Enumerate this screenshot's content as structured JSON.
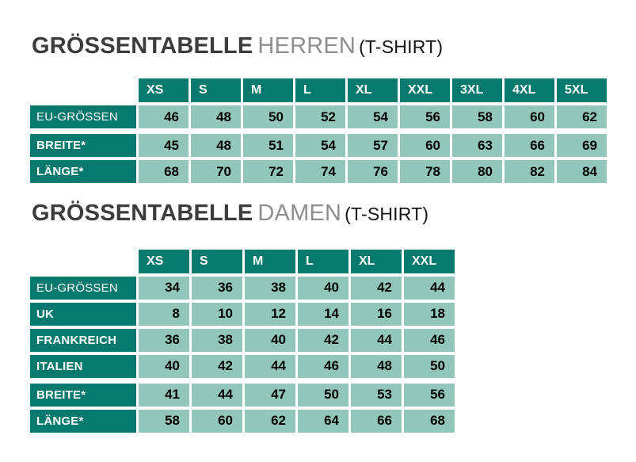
{
  "colors": {
    "teal_header": "#05796d",
    "cell_green": "#92c6bb",
    "title_main_gray": "#3c3c3c",
    "title_sub_gray": "#8e8e8e",
    "title_suffix_black": "#141414",
    "background": "#ffffff"
  },
  "tables": [
    {
      "title_main": "GRÖSSENTABELLE",
      "title_sub": "HERREN",
      "title_suffix": "(T-SHIRT)",
      "columns": [
        "XS",
        "S",
        "M",
        "L",
        "XL",
        "XXL",
        "3XL",
        "4XL",
        "5XL"
      ],
      "rows": [
        {
          "label": "EU-GRÖSSEN",
          "bold": false,
          "group_start": false,
          "values": [
            46,
            48,
            50,
            52,
            54,
            56,
            58,
            60,
            62
          ]
        },
        {
          "label": "BREITE*",
          "bold": true,
          "group_start": true,
          "values": [
            45,
            48,
            51,
            54,
            57,
            60,
            63,
            66,
            69
          ]
        },
        {
          "label": "LÄNGE*",
          "bold": true,
          "group_start": false,
          "values": [
            68,
            70,
            72,
            74,
            76,
            78,
            80,
            82,
            84
          ]
        }
      ]
    },
    {
      "title_main": "GRÖSSENTABELLE",
      "title_sub": "DAMEN",
      "title_suffix": "(T-SHIRT)",
      "columns": [
        "XS",
        "S",
        "M",
        "L",
        "XL",
        "XXL"
      ],
      "rows": [
        {
          "label": "EU-GRÖSSEN",
          "bold": false,
          "group_start": false,
          "values": [
            34,
            36,
            38,
            40,
            42,
            44
          ]
        },
        {
          "label": "UK",
          "bold": true,
          "group_start": false,
          "values": [
            8,
            10,
            12,
            14,
            16,
            18
          ]
        },
        {
          "label": "FRANKREICH",
          "bold": true,
          "group_start": false,
          "values": [
            36,
            38,
            40,
            42,
            44,
            46
          ]
        },
        {
          "label": "ITALIEN",
          "bold": true,
          "group_start": false,
          "values": [
            40,
            42,
            44,
            46,
            48,
            50
          ]
        },
        {
          "label": "BREITE*",
          "bold": true,
          "group_start": true,
          "values": [
            41,
            44,
            47,
            50,
            53,
            56
          ]
        },
        {
          "label": "LÄNGE*",
          "bold": true,
          "group_start": false,
          "values": [
            58,
            60,
            62,
            64,
            66,
            68
          ]
        }
      ]
    }
  ]
}
